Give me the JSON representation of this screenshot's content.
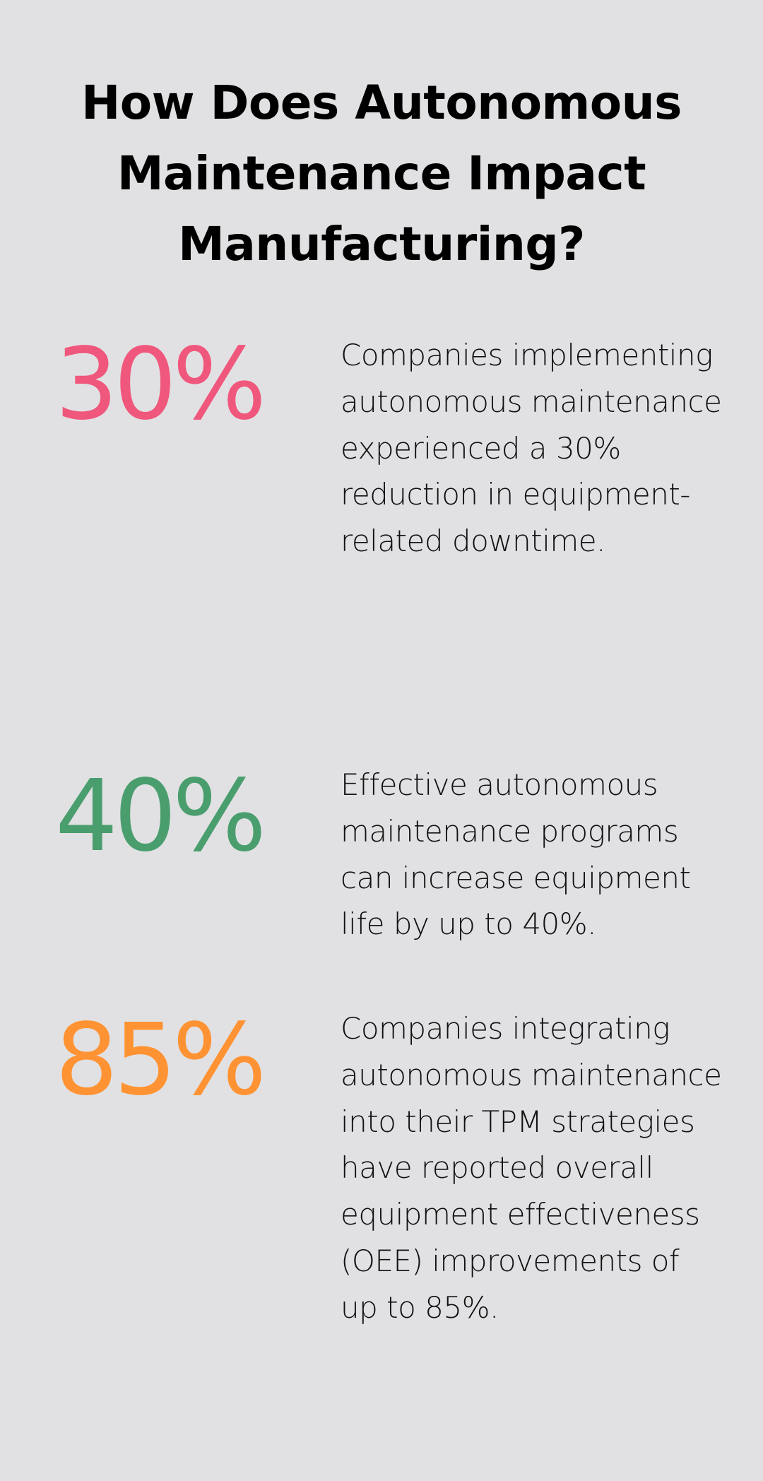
{
  "title": "How Does Autonomous Maintenance Impact Manufacturing?",
  "stats": [
    {
      "value": "30%",
      "color": "#f0577c",
      "description": "Companies implementing autonomous maintenance experienced a 30% reduction in equipment-related downtime."
    },
    {
      "value": "40%",
      "color": "#4a9e6e",
      "description": "Effective autonomous maintenance programs can increase equipment life by up to 40%."
    },
    {
      "value": "85%",
      "color": "#ff9333",
      "description": "Companies integrating autonomous maintenance into their TPM strategies have reported overall equipment effectiveness (OEE) improvements of up to 85%."
    }
  ]
}
